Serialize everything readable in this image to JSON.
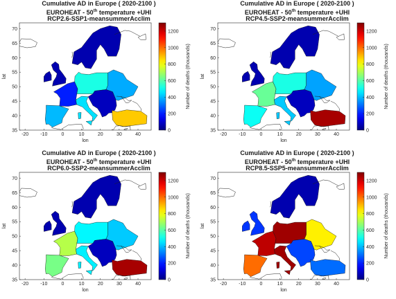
{
  "panels": [
    {
      "title1": "Cumulative AD in Europe ( 2020-2100 )",
      "title2_a": "EUROHEAT - 50",
      "title2_sup": "th",
      "title2_b": " temperature +UHI",
      "title3": "RCP2.6-SSP1-meansummerAcclim",
      "xlabel": "lon",
      "ylabel": "lat",
      "cbar_label": "Number of deaths (thousands)"
    },
    {
      "title1": "Cumulative AD in Europe ( 2020-2100 )",
      "title2_a": "EUROHEAT - 50",
      "title2_sup": "th",
      "title2_b": " temperature +UHI",
      "title3": "RCP4.5-SSP2-meansummerAcclim",
      "xlabel": "lon",
      "ylabel": "lat",
      "cbar_label": "Number of deaths (thousands)"
    },
    {
      "title1": "Cumulative AD in Europe ( 2020-2100 )",
      "title2_a": "EUROHEAT - 50",
      "title2_sup": "th",
      "title2_b": " temperature +UHI",
      "title3": "RCP6.0-SSP2-meansummerAcclim",
      "xlabel": "lon",
      "ylabel": "lat",
      "cbar_label": "Number of deaths (thousands)"
    },
    {
      "title1": "Cumulative AD in Europe ( 2020-2100 )",
      "title2_a": "EUROHEAT - 50",
      "title2_sup": "th",
      "title2_b": " temperature +UHI",
      "title3": "RCP8.5-SSP5-meansummerAcclim",
      "xlabel": "lon",
      "ylabel": "lat",
      "cbar_label": "Number of deaths (thousands)"
    }
  ],
  "map": {
    "xlim": [
      -23,
      47
    ],
    "ylim": [
      35,
      72
    ],
    "xticks": [
      -20,
      -10,
      0,
      10,
      20,
      30,
      40
    ],
    "yticks": [
      35,
      40,
      45,
      50,
      55,
      60,
      65,
      70
    ],
    "colorbar_ticks": [
      0,
      200,
      400,
      600,
      800,
      1000,
      1200
    ],
    "colorbar_range": [
      0,
      1300
    ],
    "colormap": "jet"
  },
  "region_values": [
    {
      "north": 60,
      "britain": 60,
      "west": 200,
      "iberia": 400,
      "central": 520,
      "italy": 450,
      "east": 380,
      "balkans": 80,
      "turkey": 880
    },
    {
      "north": 60,
      "britain": 60,
      "west": 620,
      "iberia": 500,
      "central": 520,
      "italy": 420,
      "east": 370,
      "balkans": 80,
      "turkey": 1250
    },
    {
      "north": 60,
      "britain": 60,
      "west": 720,
      "iberia": 640,
      "central": 480,
      "italy": 470,
      "east": 420,
      "balkans": 80,
      "turkey": 1250
    },
    {
      "north": 60,
      "britain": 230,
      "west": 1220,
      "iberia": 1000,
      "central": 1260,
      "italy": 1260,
      "east": 830,
      "balkans": 250,
      "turkey": 300
    }
  ]
}
